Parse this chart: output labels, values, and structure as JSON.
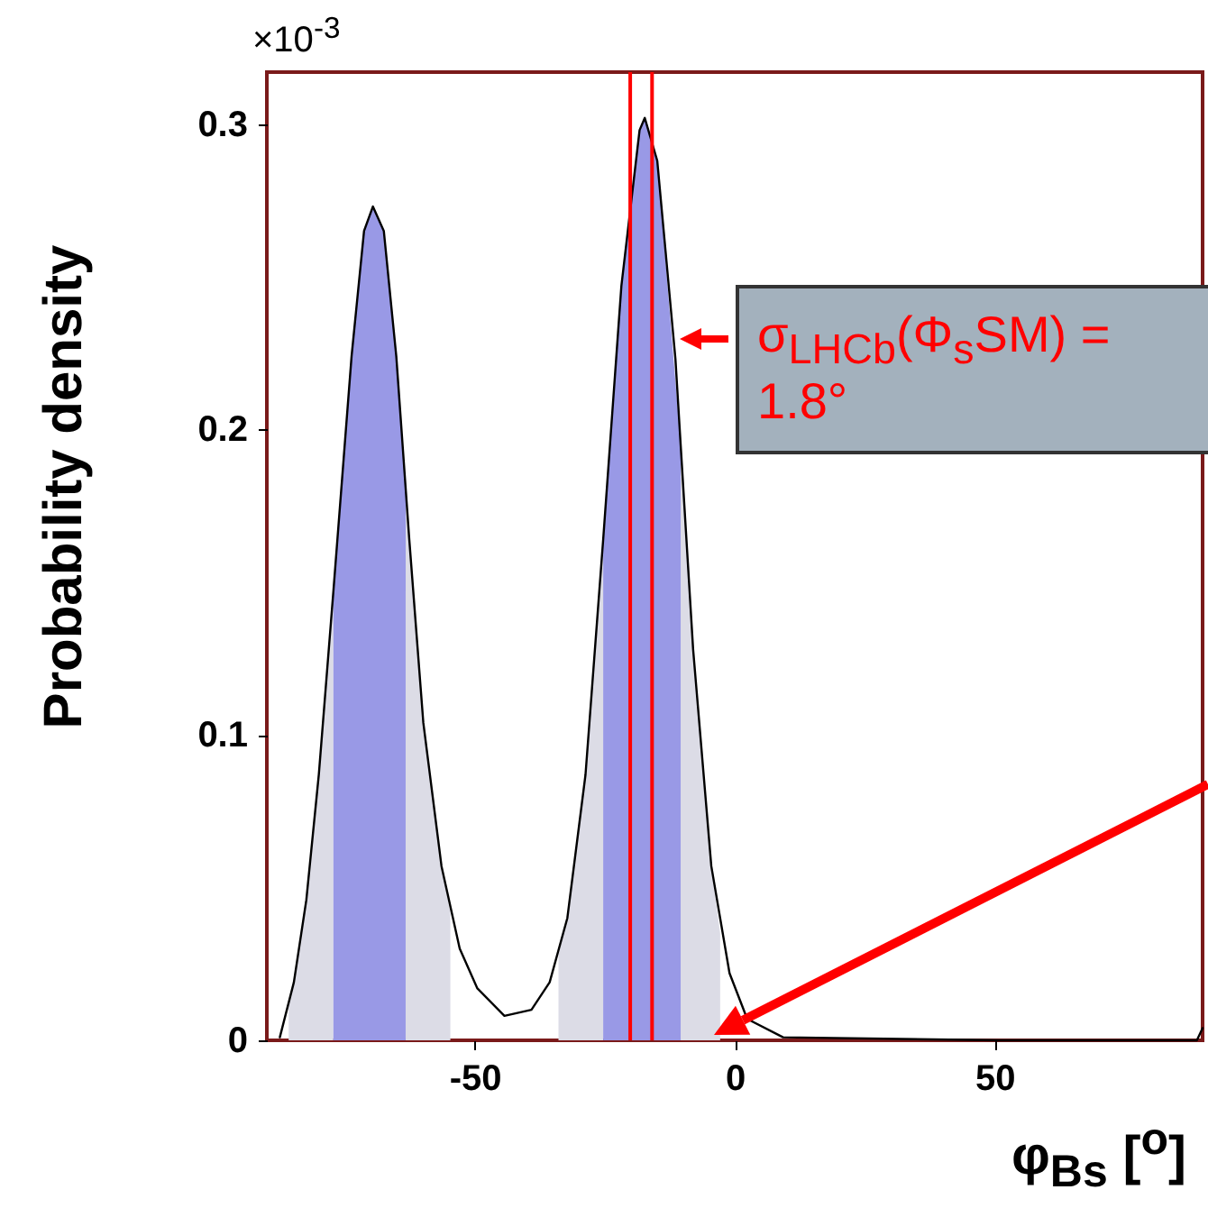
{
  "chart_data": {
    "type": "line",
    "xlabel": "φ$_{Bs}$ [$^{o}$]",
    "ylabel": "Probability density",
    "xlim": [
      -90,
      90
    ],
    "xticks": [
      -50,
      0,
      50
    ],
    "ylim": [
      0,
      0.317
    ],
    "yticks": [
      0,
      0.1,
      0.2,
      0.3
    ],
    "grid": false,
    "marker": "none",
    "series": [
      {
        "type": "area",
        "color": "#dcdce6",
        "x": [
          -85.8,
          -84.8,
          -82.4,
          -80,
          -77.2
        ],
        "values": [
          0.012,
          0.019,
          0.046,
          0.087,
          0.147
        ]
      },
      {
        "type": "area",
        "color": "#dcdce6",
        "x": [
          -63.3,
          -62.6,
          -59.9,
          -56.4,
          -54.7
        ],
        "values": [
          0.18,
          0.164,
          0.104,
          0.057,
          0.042
        ]
      },
      {
        "type": "area",
        "color": "#dcdce6",
        "x": [
          -33.9,
          -32.2,
          -28.7,
          -25.3
        ],
        "values": [
          0.028,
          0.04,
          0.087,
          0.164
        ]
      },
      {
        "type": "area",
        "color": "#dcdce6",
        "x": [
          -10.4,
          -8,
          -4.5,
          -2.8
        ],
        "values": [
          0.195,
          0.128,
          0.057,
          0.035
        ]
      },
      {
        "type": "area",
        "color": "#9999e6",
        "x": [
          -77.2,
          -73.7,
          -71.3,
          -69.6,
          -67.5,
          -65.1,
          -63.3
        ],
        "values": [
          0.147,
          0.224,
          0.265,
          0.273,
          0.265,
          0.224,
          0.18
        ]
      },
      {
        "type": "area",
        "color": "#9999e6",
        "x": [
          -25.3,
          -21.8,
          -18.3,
          -17.3,
          -14.9,
          -10.4
        ],
        "values": [
          0.164,
          0.247,
          0.298,
          0.302,
          0.288,
          0.195
        ]
      },
      {
        "type": "line",
        "color": "#000000",
        "x": [
          -87.5,
          -84.8,
          -82.4,
          -80,
          -77.2,
          -73.7,
          -71.3,
          -69.6,
          -67.5,
          -65.1,
          -62.6,
          -59.9,
          -56.4,
          -52.9,
          -49.5,
          -44.3,
          -39.1,
          -35.6,
          -32.2,
          -28.7,
          -25.3,
          -21.8,
          -18.3,
          -17.3,
          -14.9,
          -11.4,
          -8,
          -4.5,
          -1,
          2.4,
          9.3,
          50.9,
          88.9,
          90
        ],
        "values": [
          0.001,
          0.019,
          0.046,
          0.087,
          0.147,
          0.224,
          0.265,
          0.273,
          0.265,
          0.224,
          0.164,
          0.104,
          0.057,
          0.03,
          0.017,
          0.008,
          0.01,
          0.019,
          0.04,
          0.087,
          0.164,
          0.247,
          0.298,
          0.302,
          0.288,
          0.223,
          0.128,
          0.057,
          0.022,
          0.007,
          0.001,
          0,
          0,
          0.004
        ]
      }
    ],
    "ref_lines": [
      {
        "axis": "x",
        "value": -20.1,
        "color": "#ff0000"
      },
      {
        "axis": "x",
        "value": -15.9,
        "color": "#ff0000"
      }
    ],
    "annotations": [
      "×10$^{-3}$",
      "σ$_{LHCb}$(Φ$_{s}$SM) = 1.8°"
    ]
  }
}
